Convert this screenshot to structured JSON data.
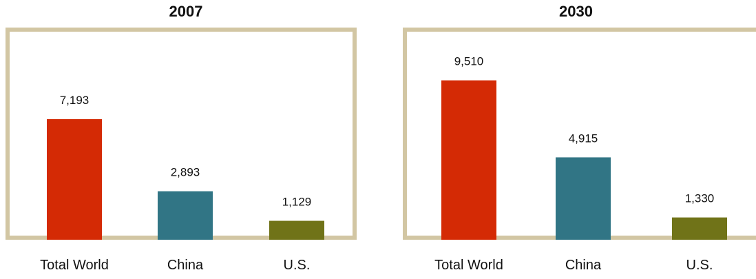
{
  "chart_data": [
    {
      "type": "bar",
      "title": "2007",
      "categories": [
        "Total World",
        "China",
        "U.S."
      ],
      "values": [
        7193,
        2893,
        1129
      ],
      "value_labels": [
        "7,193",
        "2,893",
        "1,129"
      ],
      "colors": [
        "#d42a05",
        "#317585",
        "#707318"
      ],
      "ylim": [
        0,
        10000
      ],
      "grid": false
    },
    {
      "type": "bar",
      "title": "2030",
      "categories": [
        "Total World",
        "China",
        "U.S."
      ],
      "values": [
        9510,
        4915,
        1330
      ],
      "value_labels": [
        "9,510",
        "4,915",
        "1,330"
      ],
      "colors": [
        "#d42a05",
        "#317585",
        "#707318"
      ],
      "ylim": [
        0,
        10000
      ],
      "grid": false
    }
  ]
}
